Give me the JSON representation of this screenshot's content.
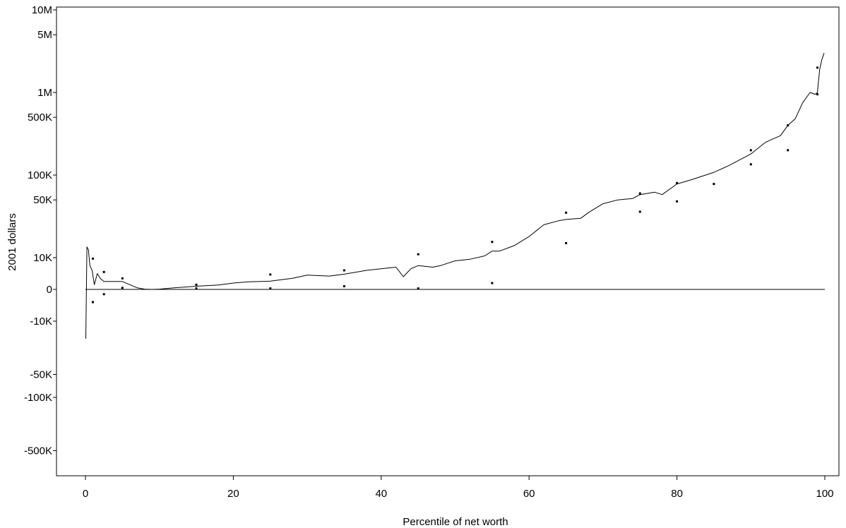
{
  "chart_data": {
    "type": "line",
    "title": "",
    "xlabel": "Percentile of net worth",
    "ylabel": "2001 dollars",
    "xlim": [
      0,
      100
    ],
    "x_ticks": [
      0,
      20,
      40,
      60,
      80,
      100
    ],
    "x_tick_labels": [
      "0",
      "20",
      "40",
      "60",
      "80",
      "100"
    ],
    "y_scale": "symmetric-log (linear near 0, log beyond ±10K)",
    "ylim": [
      -1000000,
      10000000
    ],
    "y_ticks": [
      -500000,
      -100000,
      -50000,
      -10000,
      0,
      10000,
      50000,
      100000,
      500000,
      1000000,
      5000000,
      10000000
    ],
    "y_tick_labels": [
      "-500K",
      "-100K",
      "-50K",
      "-10K",
      "0",
      "10K",
      "50K",
      "100K",
      "500K",
      "1M",
      "5M",
      "10M"
    ],
    "grid": false,
    "legend": "none",
    "reference_line": {
      "y": 0
    },
    "series": [
      {
        "style": "line",
        "x": [
          0.05,
          0.2,
          0.4,
          0.6,
          0.9,
          1.2,
          1.6,
          2.0,
          2.5,
          3.0,
          4.0,
          5.0,
          6.0,
          7.0,
          8.0,
          9.0,
          10,
          12,
          15,
          18,
          20,
          22,
          25,
          28,
          30,
          33,
          35,
          38,
          40,
          42,
          43,
          44,
          45,
          47,
          48,
          50,
          52,
          54,
          55,
          56,
          58,
          60,
          62,
          64,
          65,
          67,
          68,
          70,
          72,
          74,
          75,
          77,
          78,
          80,
          82,
          85,
          87,
          90,
          92,
          94,
          95,
          96,
          97,
          98,
          98.7,
          99.0,
          99.3,
          99.6,
          99.9
        ],
        "y": [
          -17000,
          13500,
          12500,
          7500,
          6000,
          1500,
          5000,
          3500,
          2500,
          2500,
          2500,
          2500,
          1500,
          500,
          100,
          0,
          100,
          500,
          1000,
          1400,
          2000,
          2400,
          2600,
          3500,
          4500,
          4200,
          4800,
          6000,
          6500,
          7000,
          4000,
          6500,
          7500,
          7000,
          7500,
          9000,
          9500,
          10500,
          12000,
          12000,
          14000,
          18000,
          25000,
          28000,
          29000,
          30000,
          35000,
          45000,
          50000,
          52000,
          58000,
          62000,
          58000,
          78000,
          88000,
          108000,
          130000,
          180000,
          250000,
          300000,
          400000,
          480000,
          750000,
          1000000,
          950000,
          1000000,
          1900000,
          2500000,
          3000000
        ]
      },
      {
        "style": "points",
        "x": [
          1,
          1,
          2.5,
          2.5,
          5,
          5,
          15,
          15,
          25,
          25,
          35,
          35,
          45,
          45,
          55,
          55,
          65,
          65,
          75,
          75,
          80,
          80,
          85,
          90,
          90,
          95,
          95,
          99,
          99
        ],
        "y": [
          9700,
          -4000,
          5500,
          -1500,
          3500,
          500,
          1500,
          300,
          4700,
          300,
          6000,
          1000,
          11000,
          300,
          15500,
          2000,
          35000,
          15000,
          60000,
          36000,
          80000,
          48000,
          78000,
          200000,
          135000,
          400000,
          200000,
          2000000,
          950000
        ]
      }
    ]
  }
}
